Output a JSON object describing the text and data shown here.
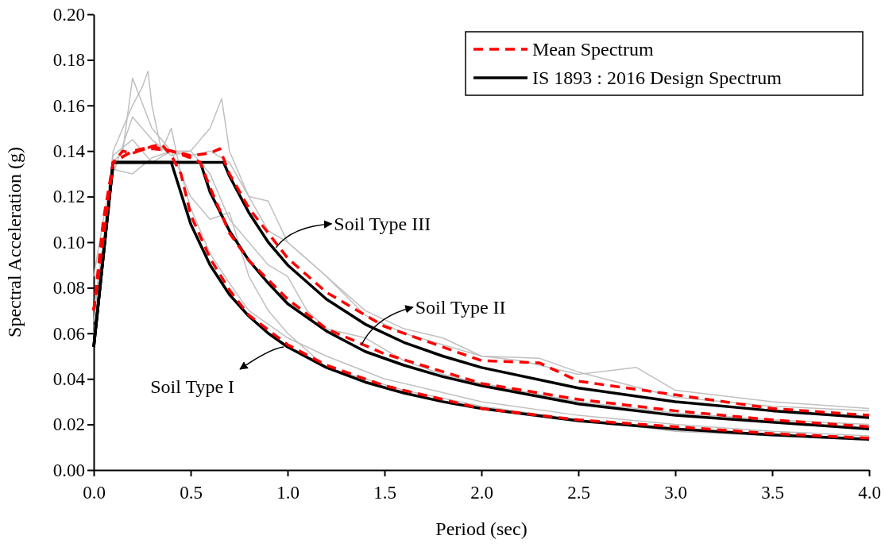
{
  "chart_data": {
    "type": "line",
    "xlabel": "Period (sec)",
    "ylabel": "Spectral Acceleration (g)",
    "xlim": [
      0,
      4
    ],
    "xticks": [
      {
        "value": 0,
        "label": "0.0"
      },
      {
        "value": 0.5,
        "label": "0.5"
      },
      {
        "value": 1,
        "label": "1.0"
      },
      {
        "value": 1.5,
        "label": "1.5"
      },
      {
        "value": 2,
        "label": "2.0"
      },
      {
        "value": 2.5,
        "label": "2.5"
      },
      {
        "value": 3,
        "label": "3.0"
      },
      {
        "value": 3.5,
        "label": "3.5"
      },
      {
        "value": 4,
        "label": "4.0"
      }
    ],
    "ylim": [
      0,
      0.2
    ],
    "yticks": [
      {
        "value": 0,
        "label": "0.00"
      },
      {
        "value": 0.02,
        "label": "0.02"
      },
      {
        "value": 0.04,
        "label": "0.04"
      },
      {
        "value": 0.06,
        "label": "0.06"
      },
      {
        "value": 0.08,
        "label": "0.08"
      },
      {
        "value": 0.1,
        "label": "0.10"
      },
      {
        "value": 0.12,
        "label": "0.12"
      },
      {
        "value": 0.14,
        "label": "0.14"
      },
      {
        "value": 0.16,
        "label": "0.16"
      },
      {
        "value": 0.18,
        "label": "0.18"
      },
      {
        "value": 0.2,
        "label": "0.20"
      }
    ],
    "grid": false,
    "legend": "top right",
    "marker": "none",
    "series": [
      {
        "color": "#c0c0c0",
        "line_style": "solid",
        "x": [
          0,
          0.05,
          0.1,
          0.15,
          0.2,
          0.25,
          0.28,
          0.3,
          0.35,
          0.4,
          0.45,
          0.5,
          0.6,
          0.7,
          0.8,
          1.0,
          1.2,
          1.5,
          2.0,
          2.5,
          3.0,
          3.5,
          4.0
        ],
        "values": [
          0.07,
          0.1,
          0.14,
          0.15,
          0.16,
          0.168,
          0.175,
          0.16,
          0.14,
          0.15,
          0.13,
          0.115,
          0.095,
          0.082,
          0.07,
          0.058,
          0.05,
          0.04,
          0.03,
          0.024,
          0.02,
          0.017,
          0.015
        ]
      },
      {
        "color": "#c0c0c0",
        "line_style": "solid",
        "x": [
          0,
          0.1,
          0.15,
          0.2,
          0.3,
          0.4,
          0.5,
          0.6,
          0.66,
          0.7,
          0.8,
          0.9,
          1.0,
          1.2,
          1.4,
          1.6,
          2.0,
          2.3,
          2.5,
          3.0,
          3.5,
          4.0
        ],
        "values": [
          0.085,
          0.135,
          0.14,
          0.172,
          0.15,
          0.14,
          0.14,
          0.15,
          0.163,
          0.14,
          0.12,
          0.105,
          0.1,
          0.085,
          0.068,
          0.06,
          0.05,
          0.049,
          0.043,
          0.032,
          0.028,
          0.026
        ]
      },
      {
        "color": "#c0c0c0",
        "line_style": "solid",
        "x": [
          0,
          0.1,
          0.2,
          0.3,
          0.4,
          0.5,
          0.6,
          0.7,
          0.8,
          0.9,
          1.0,
          1.1,
          1.2,
          1.4,
          1.6,
          1.8,
          2.0,
          2.5,
          3.0,
          3.5,
          4.0
        ],
        "values": [
          0.06,
          0.13,
          0.155,
          0.145,
          0.138,
          0.14,
          0.13,
          0.11,
          0.1,
          0.09,
          0.085,
          0.07,
          0.062,
          0.058,
          0.048,
          0.042,
          0.038,
          0.03,
          0.025,
          0.022,
          0.02
        ]
      },
      {
        "color": "#c0c0c0",
        "line_style": "solid",
        "x": [
          0,
          0.1,
          0.2,
          0.3,
          0.4,
          0.5,
          0.6,
          0.7,
          0.8,
          0.9,
          1.0,
          1.2,
          1.4,
          1.6,
          2.0,
          2.5,
          3.0,
          3.5,
          4.0
        ],
        "values": [
          0.055,
          0.132,
          0.13,
          0.137,
          0.14,
          0.12,
          0.11,
          0.113,
          0.085,
          0.07,
          0.06,
          0.045,
          0.04,
          0.035,
          0.028,
          0.022,
          0.017,
          0.015,
          0.013
        ]
      },
      {
        "color": "#c0c0c0",
        "line_style": "solid",
        "x": [
          0,
          0.1,
          0.2,
          0.3,
          0.4,
          0.5,
          0.6,
          0.7,
          0.8,
          0.9,
          1.0,
          1.2,
          1.4,
          1.6,
          1.8,
          2.0,
          2.2,
          2.5,
          2.8,
          3.0,
          3.5,
          4.0
        ],
        "values": [
          0.065,
          0.138,
          0.145,
          0.135,
          0.14,
          0.138,
          0.14,
          0.135,
          0.12,
          0.118,
          0.1,
          0.085,
          0.07,
          0.062,
          0.058,
          0.05,
          0.048,
          0.042,
          0.045,
          0.035,
          0.03,
          0.027
        ]
      },
      {
        "color": "#000000",
        "line_style": "solid",
        "x": [
          0,
          0.1,
          0.4,
          0.5,
          0.6,
          0.7,
          0.8,
          0.9,
          1.0,
          1.2,
          1.4,
          1.6,
          1.8,
          2.0,
          2.5,
          3.0,
          3.5,
          4.0
        ],
        "values": [
          0.054,
          0.135,
          0.135,
          0.108,
          0.09,
          0.077,
          0.0675,
          0.06,
          0.054,
          0.045,
          0.0386,
          0.0338,
          0.03,
          0.027,
          0.0216,
          0.018,
          0.0154,
          0.0135
        ]
      },
      {
        "color": "#000000",
        "line_style": "solid",
        "x": [
          0,
          0.1,
          0.55,
          0.6,
          0.7,
          0.8,
          0.9,
          1.0,
          1.2,
          1.4,
          1.6,
          1.8,
          2.0,
          2.5,
          3.0,
          3.5,
          4.0
        ],
        "values": [
          0.054,
          0.135,
          0.135,
          0.122,
          0.105,
          0.092,
          0.082,
          0.073,
          0.061,
          0.052,
          0.046,
          0.041,
          0.037,
          0.029,
          0.024,
          0.021,
          0.018
        ]
      },
      {
        "name": "IS 1893 : 2016 Design Spectrum",
        "color": "#000000",
        "line_style": "solid",
        "x": [
          0,
          0.1,
          0.67,
          0.7,
          0.8,
          0.9,
          1.0,
          1.2,
          1.4,
          1.6,
          1.8,
          2.0,
          2.5,
          3.0,
          3.5,
          4.0
        ],
        "values": [
          0.054,
          0.135,
          0.135,
          0.129,
          0.113,
          0.1,
          0.09,
          0.075,
          0.064,
          0.056,
          0.05,
          0.045,
          0.036,
          0.03,
          0.026,
          0.023
        ]
      },
      {
        "color": "#ff0000",
        "line_style": "dashed",
        "x": [
          0,
          0.05,
          0.1,
          0.15,
          0.2,
          0.3,
          0.35,
          0.4,
          0.45,
          0.5,
          0.6,
          0.7,
          0.8,
          1.0,
          1.2,
          1.5,
          2.0,
          2.5,
          3.0,
          3.5,
          4.0
        ],
        "values": [
          0.07,
          0.11,
          0.135,
          0.14,
          0.139,
          0.142,
          0.143,
          0.138,
          0.13,
          0.112,
          0.093,
          0.079,
          0.068,
          0.055,
          0.046,
          0.037,
          0.027,
          0.022,
          0.019,
          0.016,
          0.014
        ]
      },
      {
        "color": "#ff0000",
        "line_style": "dashed",
        "x": [
          0,
          0.1,
          0.2,
          0.3,
          0.4,
          0.5,
          0.55,
          0.6,
          0.7,
          0.8,
          1.0,
          1.2,
          1.5,
          2.0,
          2.5,
          3.0,
          3.5,
          4.0
        ],
        "values": [
          0.07,
          0.135,
          0.14,
          0.141,
          0.14,
          0.137,
          0.135,
          0.124,
          0.104,
          0.092,
          0.075,
          0.062,
          0.051,
          0.038,
          0.031,
          0.026,
          0.022,
          0.019
        ]
      },
      {
        "name": "Mean Spectrum",
        "color": "#ff0000",
        "line_style": "dashed",
        "x": [
          0,
          0.1,
          0.2,
          0.3,
          0.4,
          0.5,
          0.6,
          0.65,
          0.7,
          0.8,
          1.0,
          1.2,
          1.5,
          2.0,
          2.3,
          2.5,
          3.0,
          3.5,
          4.0
        ],
        "values": [
          0.07,
          0.135,
          0.14,
          0.142,
          0.14,
          0.138,
          0.139,
          0.141,
          0.13,
          0.115,
          0.093,
          0.078,
          0.063,
          0.048,
          0.047,
          0.039,
          0.033,
          0.027,
          0.024
        ]
      }
    ],
    "annotations": [
      {
        "text": "Soil Type III",
        "x": 0.94,
        "y": 0.0976
      },
      {
        "text": "Soil Type II",
        "x": 1.38,
        "y": 0.0547
      },
      {
        "text": "Soil Type I",
        "x": 0.98,
        "y": 0.054
      }
    ]
  }
}
